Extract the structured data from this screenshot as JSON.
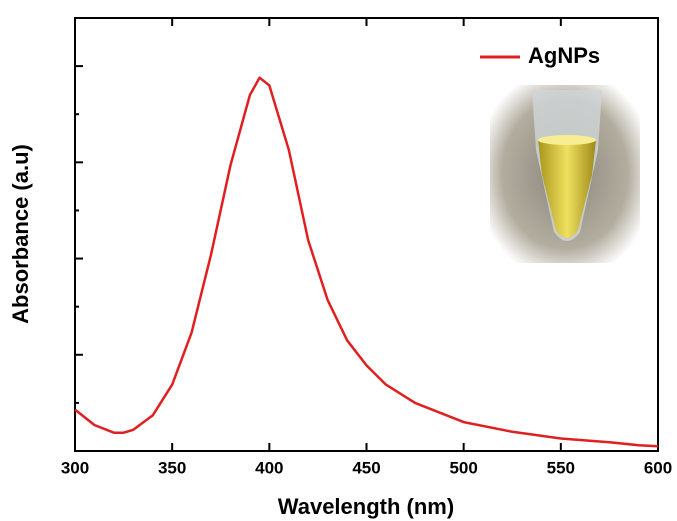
{
  "chart_data": {
    "type": "line",
    "x_label": "Wavelength (nm)",
    "y_label": "Absorbance (a.u)",
    "x": [
      300,
      310,
      320,
      325,
      330,
      340,
      350,
      360,
      370,
      380,
      390,
      395,
      400,
      410,
      420,
      430,
      440,
      450,
      460,
      475,
      500,
      525,
      550,
      575,
      590,
      600
    ],
    "series": [
      {
        "name": "AgNPs",
        "color": "#e02020",
        "values": [
          0.43,
          0.27,
          0.19,
          0.19,
          0.22,
          0.37,
          0.69,
          1.23,
          2.04,
          2.97,
          3.7,
          3.88,
          3.8,
          3.13,
          2.19,
          1.57,
          1.15,
          0.89,
          0.69,
          0.5,
          0.3,
          0.2,
          0.13,
          0.09,
          0.06,
          0.05
        ]
      }
    ],
    "xlim": [
      300,
      600
    ],
    "xticks": [
      300,
      350,
      400,
      450,
      500,
      550,
      600
    ],
    "ylim": [
      0,
      4.5
    ],
    "yticks": [
      0,
      0.5,
      1,
      1.5,
      2,
      2.5,
      3,
      3.5,
      4
    ],
    "legend": "upper right"
  }
}
